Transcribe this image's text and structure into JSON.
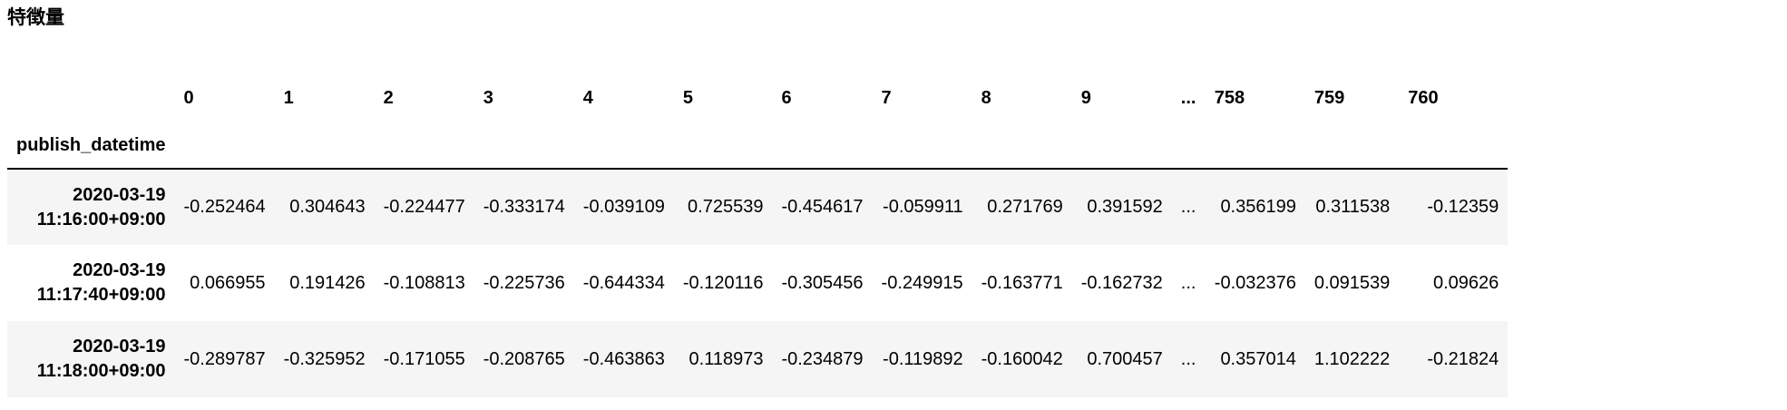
{
  "title": "特徴量",
  "table": {
    "index_name": "publish_datetime",
    "columns": [
      "0",
      "1",
      "2",
      "3",
      "4",
      "5",
      "6",
      "7",
      "8",
      "9",
      "...",
      "758",
      "759",
      "760"
    ],
    "rows": [
      {
        "date": "2020-03-19",
        "time": "11:16:00+09:00",
        "cells": [
          "-0.252464",
          "0.304643",
          "-0.224477",
          "-0.333174",
          "-0.039109",
          "0.725539",
          "-0.454617",
          "-0.059911",
          "0.271769",
          "0.391592",
          "...",
          "0.356199",
          "0.311538",
          "-0.12359"
        ]
      },
      {
        "date": "2020-03-19",
        "time": "11:17:40+09:00",
        "cells": [
          "0.066955",
          "0.191426",
          "-0.108813",
          "-0.225736",
          "-0.644334",
          "-0.120116",
          "-0.305456",
          "-0.249915",
          "-0.163771",
          "-0.162732",
          "...",
          "-0.032376",
          "0.091539",
          "0.09626"
        ]
      },
      {
        "date": "2020-03-19",
        "time": "11:18:00+09:00",
        "cells": [
          "-0.289787",
          "-0.325952",
          "-0.171055",
          "-0.208765",
          "-0.463863",
          "0.118973",
          "-0.234879",
          "-0.119892",
          "-0.160042",
          "0.700457",
          "...",
          "0.357014",
          "1.102222",
          "-0.21824"
        ]
      }
    ]
  }
}
